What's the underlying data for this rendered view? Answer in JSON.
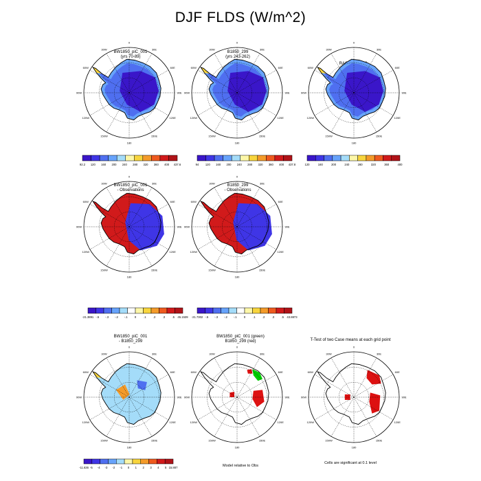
{
  "page": {
    "title": "DJF FLDS (W/m^2)"
  },
  "colors": {
    "row1_scale": [
      "#3a16c9",
      "#3f35e6",
      "#4f6ff0",
      "#67a3fb",
      "#a4dcf9",
      "#fdf7a8",
      "#f8d53d",
      "#f49b2a",
      "#ef5a1f",
      "#d11a1b",
      "#b01318"
    ],
    "row2_scale": [
      "#3a16c9",
      "#3f35e6",
      "#4f6ff0",
      "#67a3fb",
      "#a4dcf9",
      "#ffffff",
      "#fdf7a8",
      "#f8d53d",
      "#f49b2a",
      "#ef5a1f",
      "#d11a1b",
      "#b01318"
    ],
    "row3_scale": [
      "#3a16c9",
      "#3f35e6",
      "#4f6ff0",
      "#67a3fb",
      "#a4dcf9",
      "#fdf7a8",
      "#f8d53d",
      "#f49b2a",
      "#ef5a1f",
      "#d11a1b",
      "#b01318"
    ],
    "land": "#ffffff",
    "obs_model1": "#00cc00",
    "obs_model2": "#dd1111",
    "ttest": "#dd1111"
  },
  "map_labels": {
    "top": "0",
    "left": "90W",
    "right": "90E",
    "bottom": "180",
    "upper_left": "30W",
    "upper_right": "30E",
    "left_upper": "60W",
    "right_upper": "60E",
    "left_lower": "120W",
    "right_lower": "120E",
    "lower_left": "150W",
    "lower_right": "150E"
  },
  "panels": [
    {
      "id": "p1",
      "title_lines": [
        "BW1850_piC_001",
        "(yrs 70-89)"
      ],
      "colorbar": {
        "labels": [
          "92.2",
          "120",
          "160",
          "200",
          "240",
          "280",
          "320",
          "360",
          "400",
          "437.6"
        ],
        "scale": "row1_scale"
      }
    },
    {
      "id": "p2",
      "title_lines": [
        "B1850_299",
        "(yrs 243-262)"
      ],
      "colorbar": {
        "labels": [
          "94",
          "120",
          "160",
          "200",
          "240",
          "280",
          "320",
          "360",
          "400",
          "437.8"
        ],
        "scale": "row1_scale"
      }
    },
    {
      "id": "p3",
      "title_lines": [
        "RACMO2.3_p2"
      ],
      "colorbar": {
        "labels": [
          "120",
          "160",
          "200",
          "240",
          "280",
          "320",
          "360",
          "400"
        ],
        "scale": "row1_scale"
      }
    },
    {
      "id": "p4",
      "title_lines": [
        "BW1850_piC_001",
        "- Observations"
      ],
      "colorbar": {
        "labels": [
          "-21.3891",
          "-.5",
          "-.3",
          "-.2",
          "-.1",
          "0",
          ".1",
          ".2",
          ".3",
          ".5",
          "45.1539"
        ],
        "scale": "row2_scale"
      }
    },
    {
      "id": "p5",
      "title_lines": [
        "B1850_299",
        "- Observations"
      ],
      "colorbar": {
        "labels": [
          "-21.7302",
          "-.5",
          "-.3",
          "-.2",
          "-.1",
          "0",
          ".1",
          ".2",
          ".3",
          ".5",
          "43.8873"
        ],
        "scale": "row2_scale"
      }
    },
    {
      "id": "p6",
      "title_lines": [
        "BW1850_piC_001",
        "- B1850_299"
      ],
      "colorbar": {
        "labels": [
          "-11.636",
          "-5",
          "-4",
          "-3",
          "-2",
          "-1",
          "0",
          "1",
          "2",
          "3",
          "4",
          "5",
          "15.887"
        ],
        "scale": "row3_scale"
      }
    },
    {
      "id": "p7",
      "title_lines": [
        "BW1850_piC_001 (green)",
        "B1850_299 (red)"
      ],
      "note": "Model relative to Obs"
    },
    {
      "id": "p8",
      "title_lines": [
        "T-Test of two Case means at each grid point"
      ],
      "note": "Cells are significant at 0.1 level"
    }
  ]
}
